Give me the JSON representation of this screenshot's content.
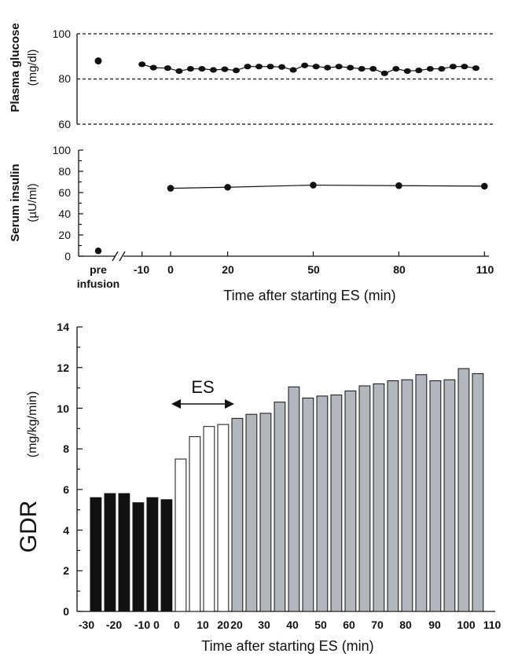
{
  "chart_data": [
    {
      "type": "scatter",
      "ylabel": "Plasma glucose",
      "yunit": "(mg/dl)",
      "ylim": [
        60,
        100
      ],
      "yticks": [
        "100",
        "80",
        "60"
      ],
      "dashed_gridlines": [
        60,
        80,
        100
      ],
      "pre_infusion_value": 88,
      "series": [
        {
          "x": [
            -10,
            -6,
            -1,
            3,
            7,
            11,
            15,
            19,
            23,
            27,
            31,
            35,
            39,
            43,
            47,
            51,
            55,
            59,
            63,
            67,
            71,
            75,
            79,
            83,
            87,
            91,
            95,
            99,
            103,
            107
          ],
          "y": [
            86.5,
            85,
            84.8,
            83.5,
            84.5,
            84.5,
            84,
            84.3,
            83.8,
            85.5,
            85.5,
            85.5,
            85.3,
            84,
            86,
            85.5,
            85,
            85.5,
            85,
            84.5,
            84.5,
            82.5,
            84.5,
            83.5,
            83.8,
            84.5,
            84.5,
            85.5,
            85.5,
            84.8
          ]
        }
      ]
    },
    {
      "type": "line",
      "ylabel": "Serum insulin",
      "yunit": "(µU/ml)",
      "ylim": [
        0,
        100
      ],
      "yticks": [
        "0",
        "20",
        "40",
        "60",
        "80",
        "100"
      ],
      "xticks": [
        "-10",
        "0",
        "20",
        "50",
        "80",
        "110"
      ],
      "pre_label_1": "pre",
      "pre_label_2": "infusion",
      "xlabel": "Time after starting ES (min)",
      "pre_infusion_value": 5,
      "series": [
        {
          "x": [
            0,
            20,
            50,
            80,
            110
          ],
          "y": [
            64,
            65,
            67,
            66.5,
            66
          ]
        }
      ]
    },
    {
      "type": "bar",
      "ylabel": "GDR",
      "yunit": "(mg/kg/min)",
      "ylim": [
        0,
        14
      ],
      "yticks": [
        "0",
        "2",
        "4",
        "6",
        "8",
        "10",
        "12",
        "14"
      ],
      "xticks": [
        "-30",
        "-20",
        "-10",
        "0",
        "0",
        "10",
        "20",
        "20",
        "30",
        "40",
        "50",
        "60",
        "70",
        "80",
        "90",
        "100",
        "110"
      ],
      "xlabel": "Time after starting ES (min)",
      "annotation": "ES",
      "colors": {
        "basal": "#111111",
        "es": "#ffffff",
        "post": "#b2b6bd"
      },
      "bars": [
        {
          "group": "basal",
          "value": 5.6
        },
        {
          "group": "basal",
          "value": 5.8
        },
        {
          "group": "basal",
          "value": 5.8
        },
        {
          "group": "basal",
          "value": 5.35
        },
        {
          "group": "basal",
          "value": 5.6
        },
        {
          "group": "basal",
          "value": 5.5
        },
        {
          "group": "es",
          "value": 7.5
        },
        {
          "group": "es",
          "value": 8.6
        },
        {
          "group": "es",
          "value": 9.1
        },
        {
          "group": "es",
          "value": 9.2
        },
        {
          "group": "post",
          "value": 9.5
        },
        {
          "group": "post",
          "value": 9.7
        },
        {
          "group": "post",
          "value": 9.75
        },
        {
          "group": "post",
          "value": 10.3
        },
        {
          "group": "post",
          "value": 11.05
        },
        {
          "group": "post",
          "value": 10.5
        },
        {
          "group": "post",
          "value": 10.6
        },
        {
          "group": "post",
          "value": 10.65
        },
        {
          "group": "post",
          "value": 10.85
        },
        {
          "group": "post",
          "value": 11.1
        },
        {
          "group": "post",
          "value": 11.2
        },
        {
          "group": "post",
          "value": 11.35
        },
        {
          "group": "post",
          "value": 11.4
        },
        {
          "group": "post",
          "value": 11.65
        },
        {
          "group": "post",
          "value": 11.35
        },
        {
          "group": "post",
          "value": 11.4
        },
        {
          "group": "post",
          "value": 11.95
        },
        {
          "group": "post",
          "value": 11.7
        }
      ]
    }
  ]
}
